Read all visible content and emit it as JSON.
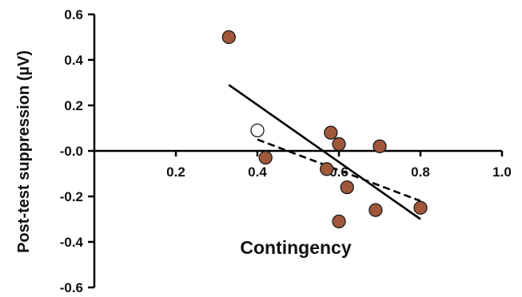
{
  "chart_data": {
    "type": "scatter",
    "xlabel": "Contingency",
    "ylabel": "Post-test suppression (µV)",
    "xlim": [
      0,
      1.0
    ],
    "ylim": [
      -0.6,
      0.6
    ],
    "x_ticks": [
      0.2,
      0.4,
      0.6,
      0.8,
      1.0
    ],
    "x_tick_labels": [
      "0.2",
      "0.4",
      "0.6",
      "0.8",
      "1.0"
    ],
    "y_ticks": [
      0.6,
      0.4,
      0.2,
      0.0,
      -0.2,
      -0.4,
      -0.6
    ],
    "y_tick_labels": [
      "0.6",
      "0.4",
      "0.2",
      "-0.0",
      "-0.2",
      "-0.4",
      "-0.6"
    ],
    "grid": false,
    "colors": {
      "filled_point": "#a0583a",
      "open_point": "#ffffff",
      "line": "#000000"
    },
    "series": [
      {
        "marker": "filled",
        "points": [
          {
            "x": 0.33,
            "y": 0.5
          },
          {
            "x": 0.42,
            "y": -0.03
          },
          {
            "x": 0.57,
            "y": -0.08
          },
          {
            "x": 0.58,
            "y": 0.08
          },
          {
            "x": 0.6,
            "y": 0.03
          },
          {
            "x": 0.62,
            "y": -0.16
          },
          {
            "x": 0.6,
            "y": -0.31
          },
          {
            "x": 0.69,
            "y": -0.26
          },
          {
            "x": 0.7,
            "y": 0.02
          },
          {
            "x": 0.8,
            "y": -0.25
          }
        ]
      },
      {
        "marker": "open",
        "points": [
          {
            "x": 0.4,
            "y": 0.09
          }
        ]
      }
    ],
    "fit_lines": [
      {
        "style": "solid",
        "x": [
          0.33,
          0.8
        ],
        "y": [
          0.29,
          -0.3
        ]
      },
      {
        "style": "dashed",
        "x": [
          0.4,
          0.8
        ],
        "y": [
          0.05,
          -0.22
        ]
      }
    ]
  }
}
